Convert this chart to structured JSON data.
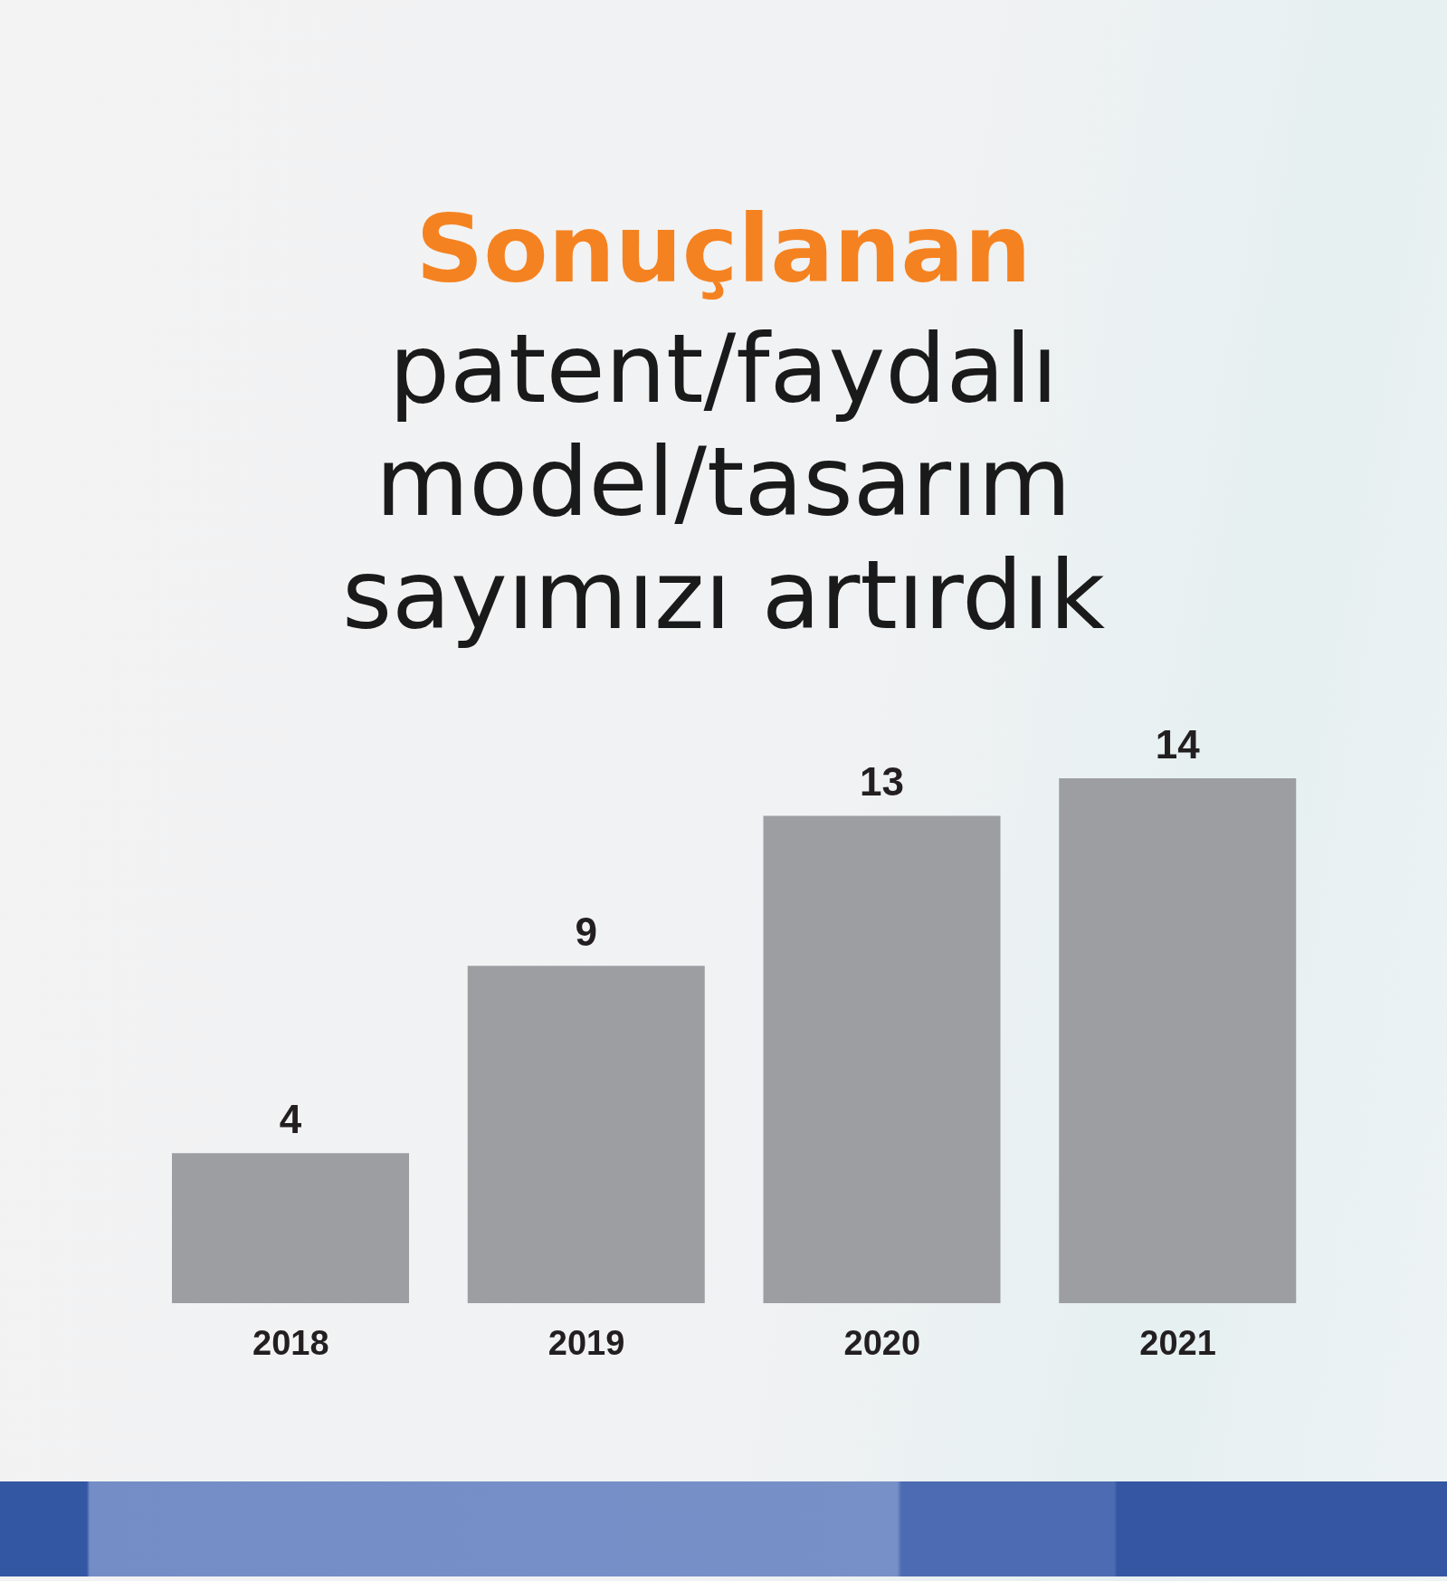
{
  "chart_data": {
    "type": "bar",
    "title": "Sonuçlanan",
    "subtitle": "patent/faydalı\nmodel/tasarım\nsayımızı artırdık",
    "categories": [
      "2018",
      "2019",
      "2020",
      "2021"
    ],
    "values": [
      4,
      9,
      13,
      14
    ],
    "color": "#9d9ea2",
    "data_labels": true
  }
}
